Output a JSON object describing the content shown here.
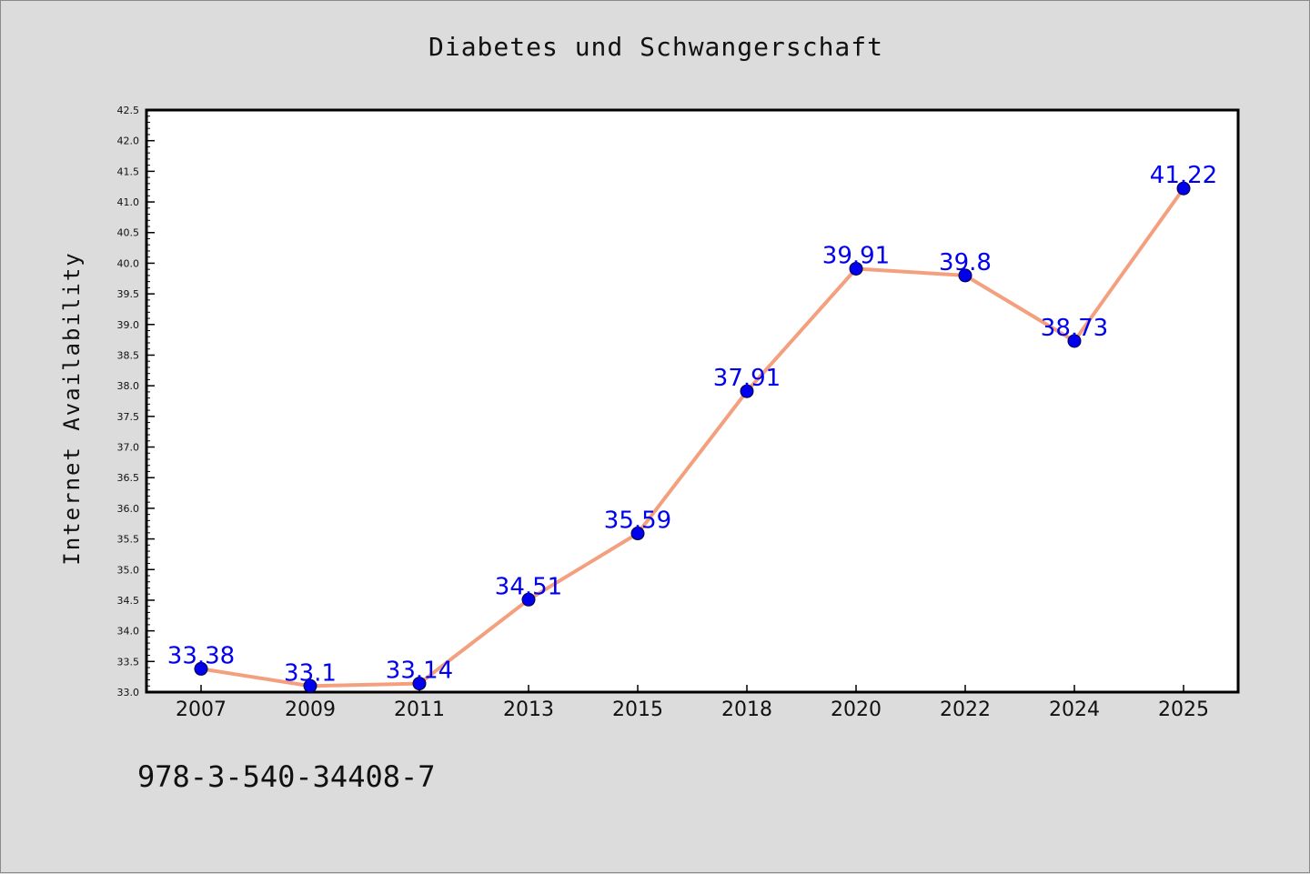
{
  "title": "Diabetes und Schwangerschaft",
  "footer_text": "978-3-540-34408-7",
  "chart_data": {
    "type": "line",
    "title": "Diabetes und Schwangerschaft",
    "xlabel": "",
    "ylabel": "Internet Availability",
    "categories": [
      "2007",
      "2009",
      "2011",
      "2013",
      "2015",
      "2018",
      "2020",
      "2022",
      "2024",
      "2025"
    ],
    "values": [
      33.38,
      33.1,
      33.14,
      34.51,
      35.59,
      37.91,
      39.91,
      39.8,
      38.73,
      41.22
    ],
    "data_labels": [
      "33.38",
      "33.1",
      "33.14",
      "34.51",
      "35.59",
      "37.91",
      "39.91",
      "39.8",
      "38.73",
      "41.22"
    ],
    "ylim": [
      33.0,
      42.5
    ],
    "yticks": [
      "33.0",
      "33.5",
      "34.0",
      "34.5",
      "35.0",
      "35.5",
      "36.0",
      "36.5",
      "37.0",
      "37.5",
      "38.0",
      "38.5",
      "39.0",
      "39.5",
      "40.0",
      "40.5",
      "41.0",
      "41.5",
      "42.0",
      "42.5"
    ],
    "grid": false,
    "legend": "none",
    "colors": {
      "line": "#f4a07f",
      "marker": "#0000ee",
      "label": "#0000ee",
      "background": "#dcdcdc",
      "plot_area": "#ffffff"
    }
  }
}
